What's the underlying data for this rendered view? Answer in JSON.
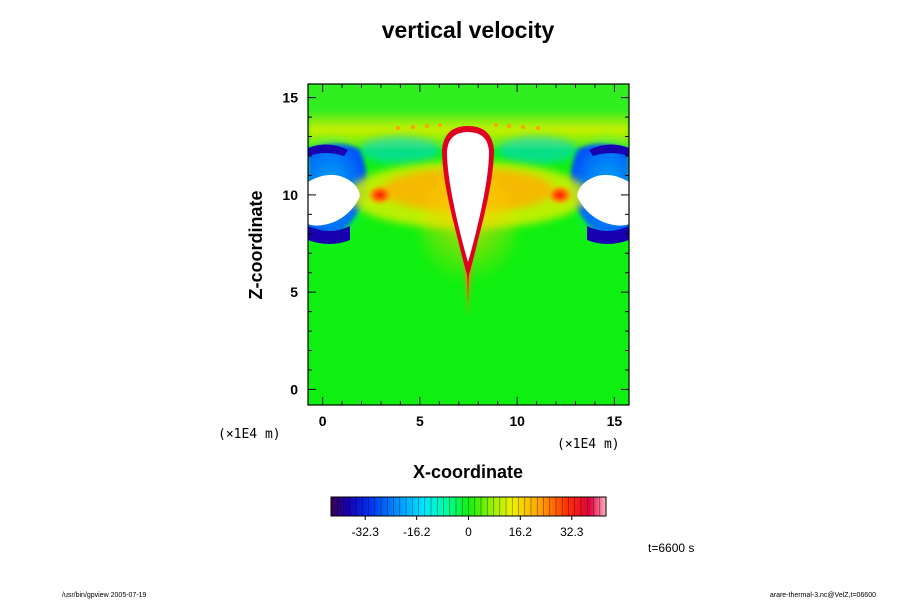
{
  "chart_data": {
    "type": "heatmap",
    "title": "vertical velocity",
    "xlabel": "X-coordinate",
    "ylabel": "Z-coordinate",
    "xlim": [
      -0.75,
      15.75
    ],
    "ylim": [
      -0.8,
      15.7
    ],
    "x_ticks": [
      0,
      5,
      10,
      15
    ],
    "y_ticks": [
      0,
      5,
      10,
      15
    ],
    "x_tick_labels": [
      "0",
      "5",
      "10",
      "15"
    ],
    "y_tick_labels": [
      "0",
      "5",
      "10",
      "15"
    ],
    "x_units": "(×1E4 m)",
    "z_units": "(×1E4 m)",
    "colorbar": {
      "min": -43,
      "max": 43,
      "ticks": [
        -32.3,
        -16.2,
        0,
        16.2,
        32.3
      ],
      "tick_labels": [
        "-32.3",
        "-16.2",
        "0",
        "16.2",
        "32.3"
      ]
    },
    "time_label": "t=6600 s"
  },
  "footer": {
    "left": "/usr/bin/gpview 2005-07-19",
    "right": "arare-thermal-3.nc@VelZ,t=06600"
  }
}
